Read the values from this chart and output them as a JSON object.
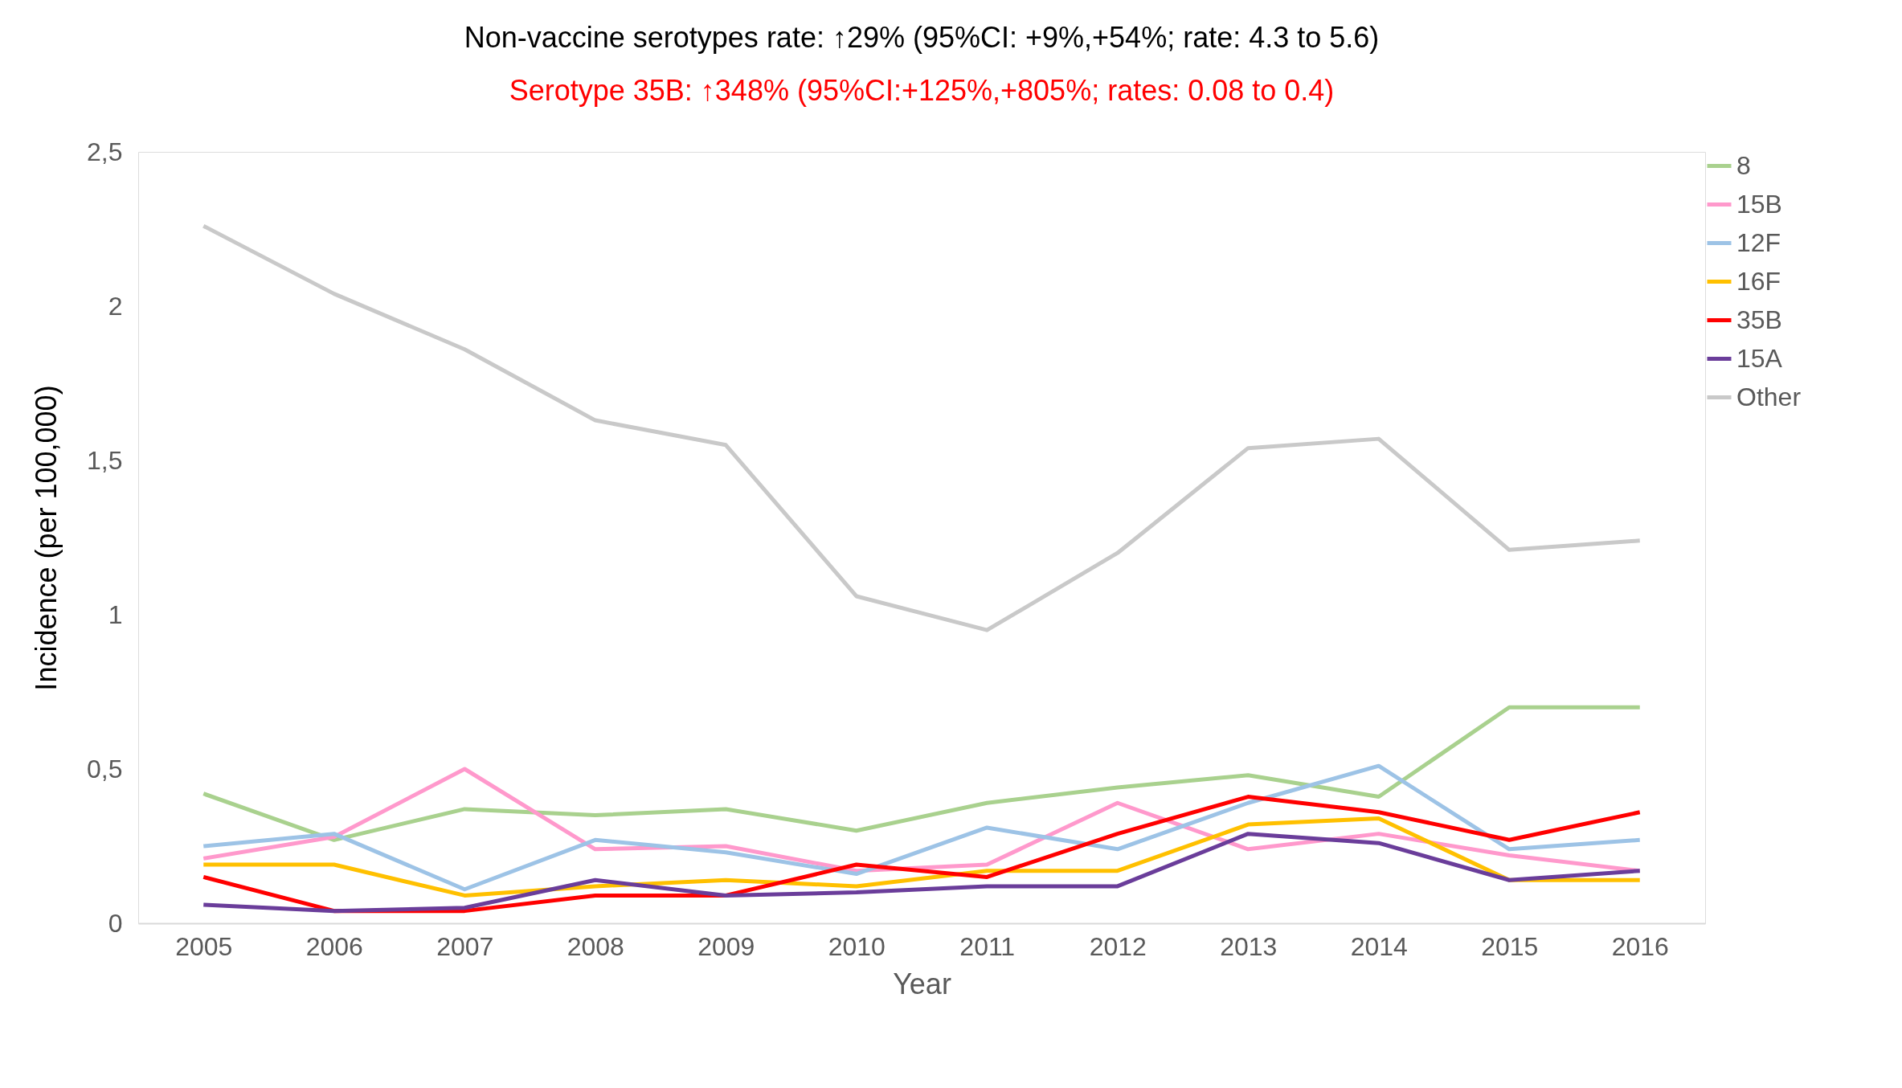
{
  "chart_data": {
    "type": "line",
    "title": "Non-vaccine serotypes rate: ↑29% (95%CI: +9%,+54%; rate: 4.3 to 5.6)",
    "subtitle": "Serotype 35B:  ↑348% (95%CI:+125%,+805%; rates: 0.08 to 0.4)",
    "xlabel": "Year",
    "ylabel": "Incidence (per 100,000)",
    "categories": [
      "2005",
      "2006",
      "2007",
      "2008",
      "2009",
      "2010",
      "2011",
      "2012",
      "2013",
      "2014",
      "2015",
      "2016"
    ],
    "series": [
      {
        "name": "8",
        "color": "#a9d18e",
        "values": [
          0.42,
          0.27,
          0.37,
          0.35,
          0.37,
          0.3,
          0.39,
          0.44,
          0.48,
          0.41,
          0.7,
          0.7
        ]
      },
      {
        "name": "15B",
        "color": "#ff99cc",
        "values": [
          0.21,
          0.28,
          0.5,
          0.24,
          0.25,
          0.17,
          0.19,
          0.39,
          0.24,
          0.29,
          0.22,
          0.17
        ]
      },
      {
        "name": "12F",
        "color": "#9dc3e6",
        "values": [
          0.25,
          0.29,
          0.11,
          0.27,
          0.23,
          0.16,
          0.31,
          0.24,
          0.39,
          0.51,
          0.24,
          0.27
        ]
      },
      {
        "name": "16F",
        "color": "#ffc000",
        "values": [
          0.19,
          0.19,
          0.09,
          0.12,
          0.14,
          0.12,
          0.17,
          0.17,
          0.32,
          0.34,
          0.14,
          0.14
        ]
      },
      {
        "name": "35B",
        "color": "#ff0000",
        "values": [
          0.15,
          0.04,
          0.04,
          0.09,
          0.09,
          0.19,
          0.15,
          0.29,
          0.41,
          0.36,
          0.27,
          0.36
        ]
      },
      {
        "name": "15A",
        "color": "#6a3d9a",
        "values": [
          0.06,
          0.04,
          0.05,
          0.14,
          0.09,
          0.1,
          0.12,
          0.12,
          0.29,
          0.26,
          0.14,
          0.17
        ]
      },
      {
        "name": "Other",
        "color": "#c9c9c9",
        "values": [
          2.26,
          2.04,
          1.86,
          1.63,
          1.55,
          1.06,
          0.95,
          1.2,
          1.54,
          1.57,
          1.21,
          1.24
        ]
      }
    ],
    "ylim": [
      0,
      2.5
    ],
    "yticks": [
      0,
      {
        "value": 0.5,
        "label": "0,5"
      },
      1,
      {
        "value": 1.5,
        "label": "1,5"
      },
      2,
      {
        "value": 2.5,
        "label": "2,5"
      }
    ],
    "grid": false,
    "legend": "right",
    "marker": "none",
    "line_style": "solid"
  }
}
